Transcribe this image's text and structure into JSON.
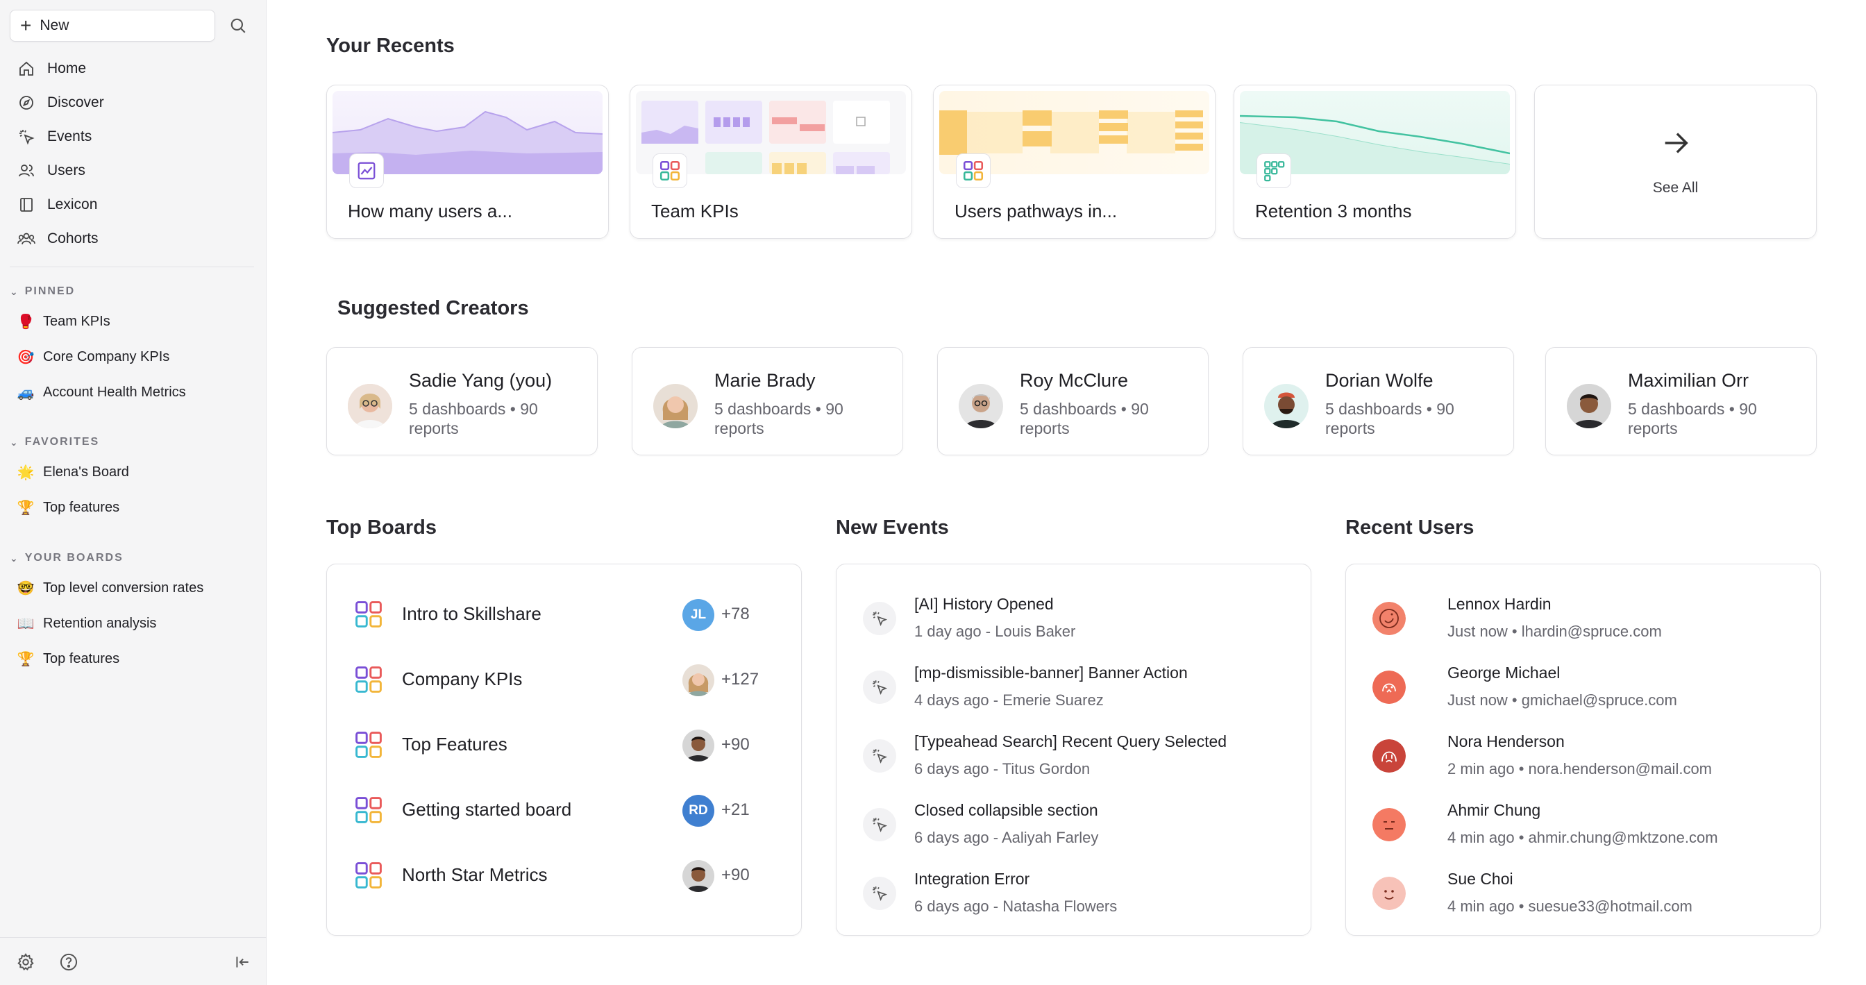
{
  "sidebar": {
    "new_label": "New",
    "nav": [
      {
        "label": "Home",
        "icon": "home-icon"
      },
      {
        "label": "Discover",
        "icon": "compass-icon"
      },
      {
        "label": "Events",
        "icon": "sparkle-click-icon"
      },
      {
        "label": "Users",
        "icon": "users-icon"
      },
      {
        "label": "Lexicon",
        "icon": "book-icon"
      },
      {
        "label": "Cohorts",
        "icon": "group-icon"
      }
    ],
    "pinned_title": "PINNED",
    "pinned": [
      {
        "label": "Team KPIs",
        "emoji": "🥊"
      },
      {
        "label": "Core Company KPIs",
        "emoji": "🎯"
      },
      {
        "label": "Account Health Metrics",
        "emoji": "🚙"
      }
    ],
    "favorites_title": "FAVORITES",
    "favorites": [
      {
        "label": "Elena's Board",
        "emoji": "🌟"
      },
      {
        "label": "Top features",
        "emoji": "🏆"
      }
    ],
    "boards_title": "YOUR BOARDS",
    "boards": [
      {
        "label": "Top level conversion rates",
        "emoji": "🤓"
      },
      {
        "label": "Retention analysis",
        "emoji": "📖"
      },
      {
        "label": "Top features",
        "emoji": "🏆"
      }
    ]
  },
  "recents": {
    "title": "Your Recents",
    "items": [
      {
        "label": "How many users a...",
        "kind": "insights"
      },
      {
        "label": "Team KPIs",
        "kind": "board"
      },
      {
        "label": "Users pathways in...",
        "kind": "flows"
      },
      {
        "label": "Retention 3 months",
        "kind": "retention"
      }
    ],
    "see_all": "See All"
  },
  "creators": {
    "title": "Suggested Creators",
    "items": [
      {
        "name": "Sadie Yang (you)",
        "meta": "5 dashboards • 90 reports"
      },
      {
        "name": "Marie Brady",
        "meta": "5 dashboards • 90 reports"
      },
      {
        "name": "Roy McClure",
        "meta": "5 dashboards • 90 reports"
      },
      {
        "name": "Dorian Wolfe",
        "meta": "5 dashboards • 90 reports"
      },
      {
        "name": "Maximilian Orr",
        "meta": "5 dashboards • 90 reports"
      }
    ]
  },
  "top_boards": {
    "title": "Top Boards",
    "items": [
      {
        "name": "Intro to Skillshare",
        "avatar": "JL",
        "count": "+78",
        "avatar_color": "#5aa6e6"
      },
      {
        "name": "Company KPIs",
        "avatar": "",
        "count": "+127",
        "avatar_color": "#c9a58a"
      },
      {
        "name": "Top Features",
        "avatar": "",
        "count": "+90",
        "avatar_color": "#6b4a36"
      },
      {
        "name": "Getting started board",
        "avatar": "RD",
        "count": "+21",
        "avatar_color": "#3f7fd0"
      },
      {
        "name": "North Star Metrics",
        "avatar": "",
        "count": "+90",
        "avatar_color": "#6b4a36"
      }
    ]
  },
  "new_events": {
    "title": "New Events",
    "items": [
      {
        "title": "[AI] History Opened",
        "sub": "1 day ago - Louis Baker"
      },
      {
        "title": "[mp-dismissible-banner] Banner Action",
        "sub": "4 days ago - Emerie Suarez"
      },
      {
        "title": "[Typeahead Search] Recent Query Selected",
        "sub": "6 days ago - Titus Gordon"
      },
      {
        "title": "Closed collapsible section",
        "sub": "6 days ago - Aaliyah Farley"
      },
      {
        "title": "Integration Error",
        "sub": "6 days ago - Natasha Flowers"
      }
    ]
  },
  "recent_users": {
    "title": "Recent Users",
    "items": [
      {
        "name": "Lennox Hardin",
        "sub": "Just now • lhardin@spruce.com",
        "color": "#f2826b"
      },
      {
        "name": "George Michael",
        "sub": "Just now • gmichael@spruce.com",
        "color": "#ee6a55"
      },
      {
        "name": "Nora Henderson",
        "sub": "2 min ago • nora.henderson@mail.com",
        "color": "#c9443a"
      },
      {
        "name": "Ahmir Chung",
        "sub": "4 min ago • ahmir.chung@mktzone.com",
        "color": "#f47a63"
      },
      {
        "name": "Sue Choi",
        "sub": "4 min ago • suesue33@hotmail.com",
        "color": "#f7c2b8"
      }
    ]
  }
}
